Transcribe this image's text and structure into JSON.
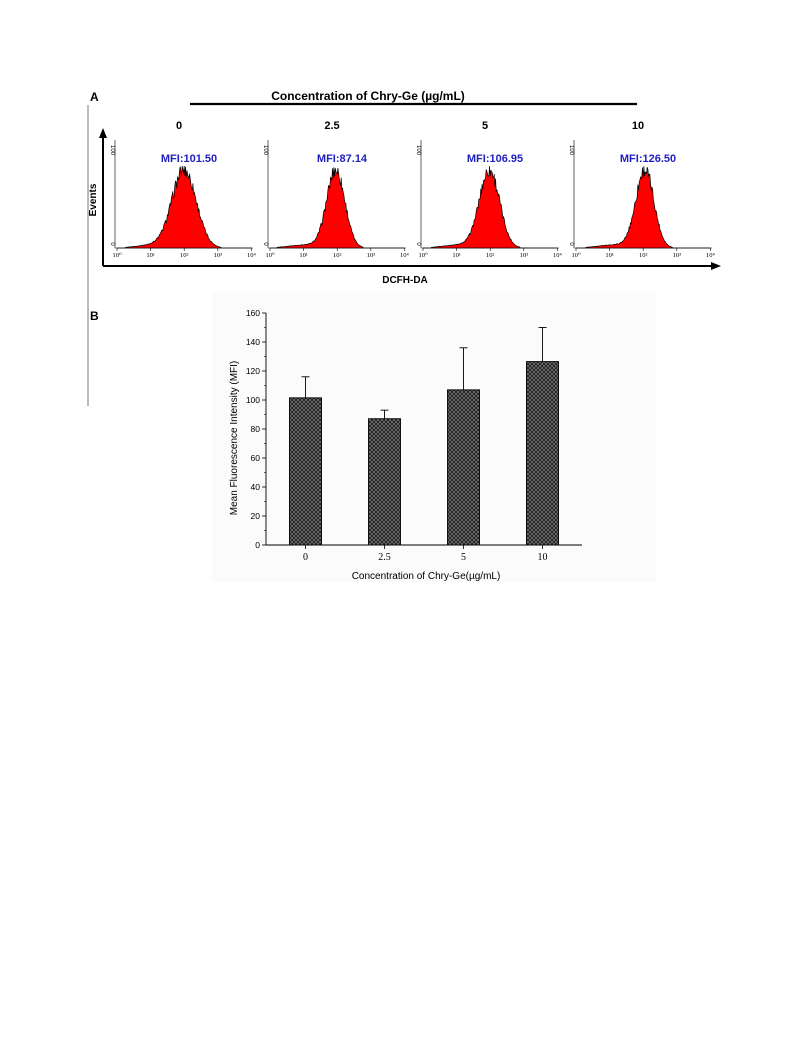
{
  "panel_a": {
    "label": "A",
    "header": "Concentration of Chry-Ge (µg/mL)",
    "x_axis_label": "DCFH-DA",
    "y_axis_label": "Events",
    "y_tick_top": "100",
    "y_tick_bottom": "0",
    "x_ticks": [
      "10⁰",
      "10¹",
      "10²",
      "10³",
      "10⁴"
    ],
    "fill_color": "#ff0000",
    "mfi_color": "#1f1fbf",
    "histograms": [
      {
        "concentration": "0",
        "mfi_label": "MFI:101.50",
        "peak_log": 2.0,
        "sigma": 0.36
      },
      {
        "concentration": "2.5",
        "mfi_label": "MFI:87.14",
        "peak_log": 1.96,
        "sigma": 0.27
      },
      {
        "concentration": "5",
        "mfi_label": "MFI:106.95",
        "peak_log": 1.98,
        "sigma": 0.3
      },
      {
        "concentration": "10",
        "mfi_label": "MFI:126.50",
        "peak_log": 2.05,
        "sigma": 0.27
      }
    ]
  },
  "panel_b": {
    "label": "B",
    "chart_data": {
      "type": "bar",
      "title": "",
      "xlabel": "Concentration of Chry-Ge(µg/mL)",
      "ylabel": "Mean Fluorescence Intensity (MFI)",
      "categories": [
        "0",
        "2.5",
        "5",
        "10"
      ],
      "values": [
        101.5,
        87.1,
        107.0,
        126.5
      ],
      "error_upper": [
        116,
        93,
        136,
        150
      ],
      "ylim": [
        0,
        160
      ],
      "yticks": [
        0,
        20,
        40,
        60,
        80,
        100,
        120,
        140,
        160
      ],
      "grid": false,
      "bar_fill": "crosshatch",
      "bar_color": "#444444"
    }
  }
}
